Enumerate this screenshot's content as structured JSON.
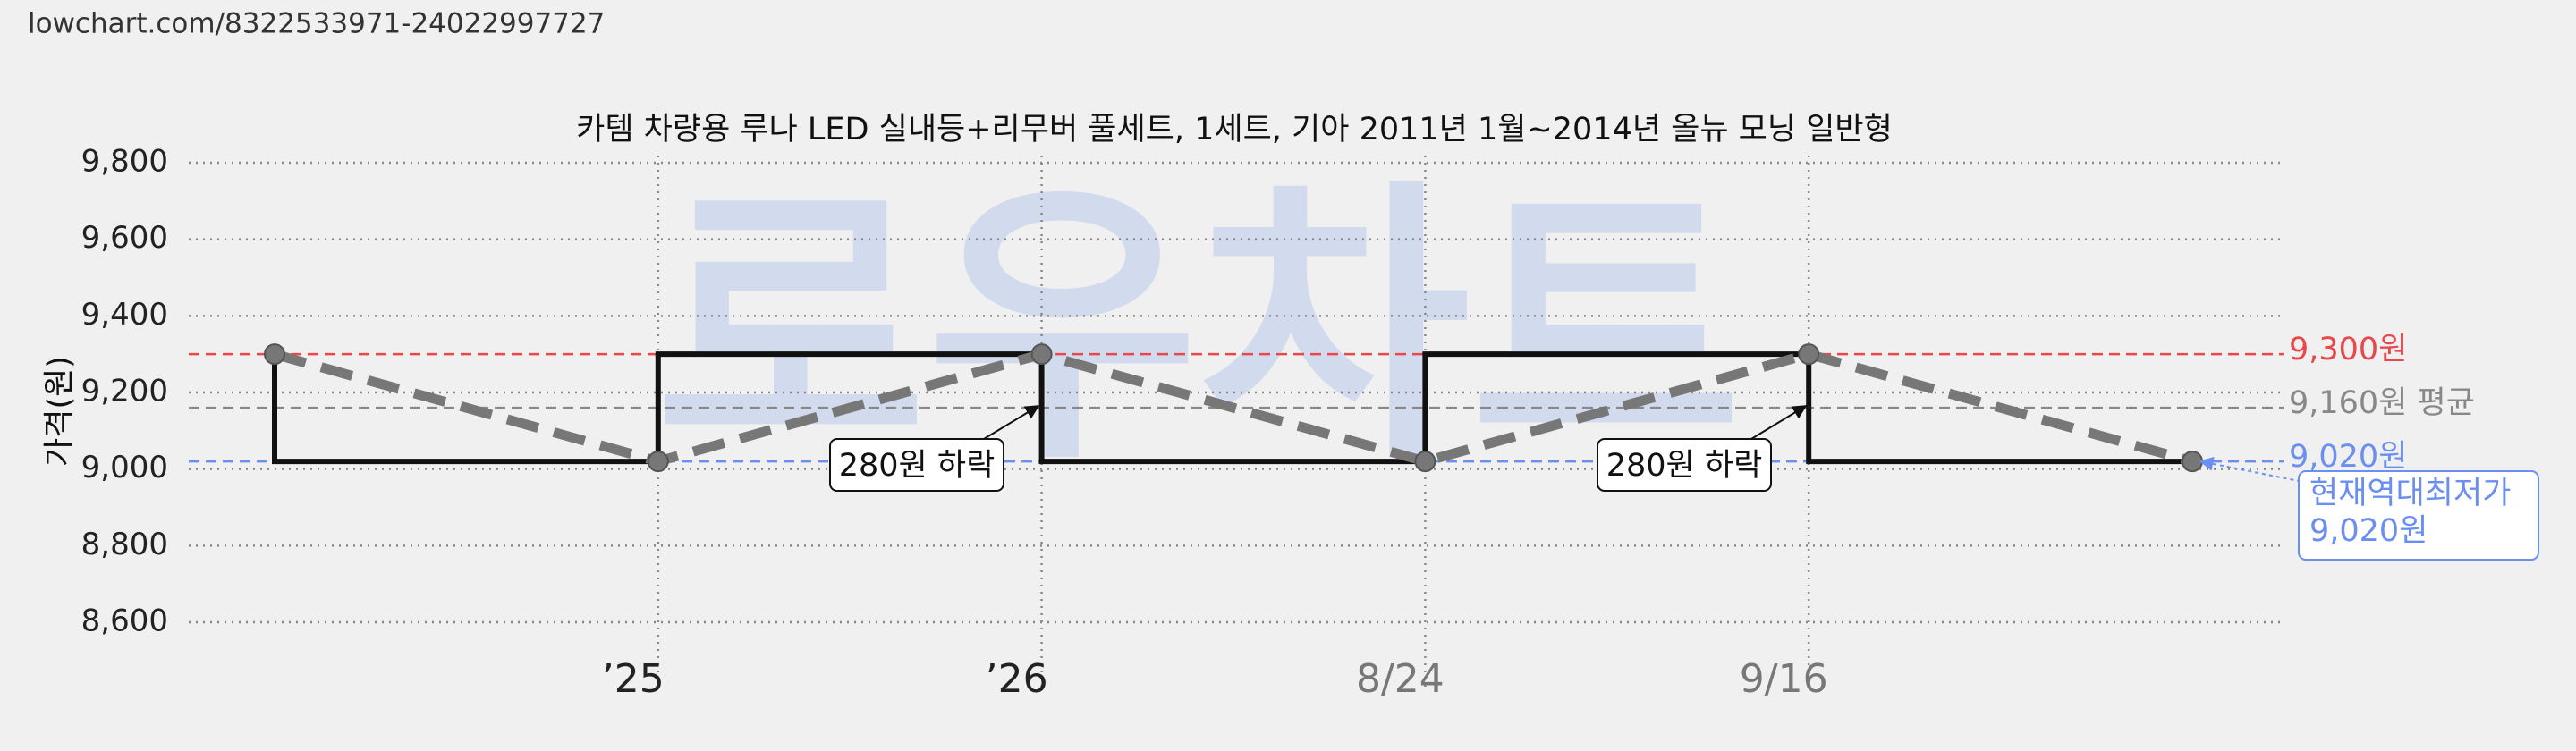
{
  "url": "lowchart.com/8322533971-24022997727",
  "chart_data": {
    "type": "line",
    "title": "카템 차량용 루나 LED 실내등+리무버 풀세트, 1세트, 기아 2011년 1월~2014년 올뉴 모닝 일반형",
    "y_label": "가격(원)",
    "watermark": "로우차트",
    "categories": [
      null,
      "’25",
      "’26",
      "8/24",
      "9/16",
      null
    ],
    "category_colors": [
      null,
      "#222222",
      "#222222",
      "#777777",
      "#777777",
      null
    ],
    "values": [
      9300,
      9020,
      9300,
      9020,
      9300,
      9020
    ],
    "step": "pre",
    "step_color": "#111111",
    "line_color": "#777777",
    "line_style": "dashed",
    "ylim": [
      8600,
      9800
    ],
    "yticks": [
      {
        "value": 8600,
        "label": "8,600"
      },
      {
        "value": 8800,
        "label": "8,800"
      },
      {
        "value": 9000,
        "label": "9,000"
      },
      {
        "value": 9200,
        "label": "9,200"
      },
      {
        "value": 9400,
        "label": "9,400"
      },
      {
        "value": 9600,
        "label": "9,600"
      },
      {
        "value": 9800,
        "label": "9,800"
      }
    ],
    "grid": true,
    "reference_lines": [
      {
        "value": 9300,
        "label": "9,300원",
        "color": "#e8474c"
      },
      {
        "value": 9160,
        "label": "9,160원 평균",
        "color": "#888888"
      },
      {
        "value": 9020,
        "label": "9,020원",
        "color": "#6b8ff0"
      }
    ],
    "annotations": [
      "280원 하락",
      "280원 하락"
    ],
    "callout": [
      "현재역대최저가",
      "9,020원"
    ]
  }
}
